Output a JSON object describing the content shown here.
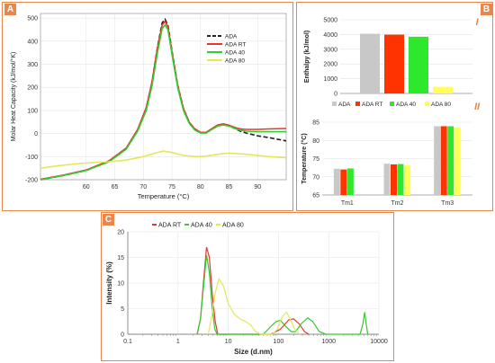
{
  "colors": {
    "frame": "#e9874a",
    "ADA": "#222222",
    "ADA RT": "#e8352d",
    "ADA 40": "#33cc33",
    "ADA 80": "#e6e65a",
    "bar_ADA": "#c8c8c8",
    "bar_RT": "#ff3300",
    "bar_40": "#2ee82e",
    "bar_80": "#ffff55"
  },
  "panels": {
    "A": "A",
    "B": "B",
    "C": "C",
    "roman_1": "I",
    "roman_2": "II"
  },
  "chart_data": [
    {
      "id": "A",
      "type": "line",
      "xlabel": "Temperature (°C)",
      "ylabel": "Molar Heat Capacity (kJ/mol/°K)",
      "xlim": [
        52,
        95
      ],
      "ylim": [
        -200,
        520
      ],
      "x_ticks": [
        60,
        65,
        70,
        75,
        80,
        85,
        90
      ],
      "y_ticks": [
        -200,
        -100,
        0,
        100,
        200,
        300,
        400,
        500
      ],
      "legend_position": "top-right",
      "series": [
        {
          "name": "ADA",
          "style": "dashed",
          "points": [
            [
              52,
              -200
            ],
            [
              56,
              -182
            ],
            [
              60,
              -160
            ],
            [
              64,
              -120
            ],
            [
              67,
              -65
            ],
            [
              69,
              15
            ],
            [
              70.5,
              110
            ],
            [
              71.5,
              220
            ],
            [
              72.5,
              380
            ],
            [
              73.3,
              480
            ],
            [
              73.8,
              495
            ],
            [
              74.3,
              470
            ],
            [
              75,
              360
            ],
            [
              76,
              210
            ],
            [
              77,
              110
            ],
            [
              78,
              50
            ],
            [
              79,
              20
            ],
            [
              80,
              5
            ],
            [
              81,
              5
            ],
            [
              82,
              20
            ],
            [
              83,
              35
            ],
            [
              84,
              40
            ],
            [
              85,
              35
            ],
            [
              86,
              22
            ],
            [
              87,
              10
            ],
            [
              88,
              2
            ],
            [
              90,
              -10
            ],
            [
              92,
              -18
            ],
            [
              95,
              -32
            ]
          ]
        },
        {
          "name": "ADA RT",
          "style": "solid",
          "points": [
            [
              52,
              -198
            ],
            [
              56,
              -180
            ],
            [
              60,
              -158
            ],
            [
              64,
              -118
            ],
            [
              67,
              -63
            ],
            [
              69,
              17
            ],
            [
              70.5,
              112
            ],
            [
              71.5,
              222
            ],
            [
              72.5,
              375
            ],
            [
              73.3,
              470
            ],
            [
              73.8,
              486
            ],
            [
              74.3,
              462
            ],
            [
              75,
              355
            ],
            [
              76,
              208
            ],
            [
              77,
              110
            ],
            [
              78,
              50
            ],
            [
              79,
              20
            ],
            [
              80,
              5
            ],
            [
              81,
              5
            ],
            [
              82,
              22
            ],
            [
              83,
              37
            ],
            [
              84,
              42
            ],
            [
              85,
              36
            ],
            [
              86,
              26
            ],
            [
              87,
              20
            ],
            [
              88,
              18
            ],
            [
              90,
              18
            ],
            [
              92,
              20
            ],
            [
              95,
              22
            ]
          ]
        },
        {
          "name": "ADA 40",
          "style": "solid",
          "points": [
            [
              52,
              -200
            ],
            [
              56,
              -182
            ],
            [
              60,
              -160
            ],
            [
              64,
              -122
            ],
            [
              67,
              -68
            ],
            [
              69,
              10
            ],
            [
              70.5,
              100
            ],
            [
              71.5,
              205
            ],
            [
              72.5,
              355
            ],
            [
              73.3,
              455
            ],
            [
              73.8,
              470
            ],
            [
              74.3,
              450
            ],
            [
              75,
              345
            ],
            [
              76,
              200
            ],
            [
              77,
              102
            ],
            [
              78,
              45
            ],
            [
              79,
              15
            ],
            [
              80,
              2
            ],
            [
              81,
              2
            ],
            [
              82,
              18
            ],
            [
              83,
              32
            ],
            [
              84,
              37
            ],
            [
              85,
              32
            ],
            [
              86,
              22
            ],
            [
              87,
              14
            ],
            [
              88,
              10
            ],
            [
              90,
              8
            ],
            [
              92,
              8
            ],
            [
              95,
              8
            ]
          ]
        },
        {
          "name": "ADA 80",
          "style": "solid",
          "points": [
            [
              52,
              -150
            ],
            [
              55,
              -140
            ],
            [
              58,
              -132
            ],
            [
              61,
              -126
            ],
            [
              64,
              -122
            ],
            [
              67,
              -115
            ],
            [
              70,
              -100
            ],
            [
              72,
              -85
            ],
            [
              73.5,
              -76
            ],
            [
              75,
              -82
            ],
            [
              77,
              -95
            ],
            [
              79,
              -100
            ],
            [
              81,
              -98
            ],
            [
              83,
              -90
            ],
            [
              85,
              -85
            ],
            [
              88,
              -90
            ],
            [
              92,
              -100
            ],
            [
              95,
              -105
            ]
          ]
        }
      ]
    },
    {
      "id": "B-I",
      "type": "bar",
      "ylabel": "Enthalpy (kJ/mol)",
      "ylim": [
        0,
        5000
      ],
      "y_ticks": [
        0,
        1000,
        2000,
        3000,
        4000,
        5000
      ],
      "categories": [
        "ADA",
        "ADA RT",
        "ADA 40",
        "ADA 80"
      ],
      "values": [
        4050,
        3990,
        3850,
        450
      ],
      "legend_position": "bottom"
    },
    {
      "id": "B-II",
      "type": "bar",
      "ylabel": "Temperature (°C)",
      "ylim": [
        65,
        85
      ],
      "y_ticks": [
        65,
        70,
        75,
        80,
        85
      ],
      "categories": [
        "Tm1",
        "Tm2",
        "Tm3"
      ],
      "series": [
        {
          "name": "ADA",
          "values": [
            72.2,
            73.6,
            83.9
          ]
        },
        {
          "name": "ADA RT",
          "values": [
            72.0,
            73.4,
            83.9
          ]
        },
        {
          "name": "ADA 40",
          "values": [
            72.3,
            73.5,
            83.9
          ]
        },
        {
          "name": "ADA 80",
          "values": [
            65.0,
            73.2,
            83.5
          ]
        }
      ]
    },
    {
      "id": "C",
      "type": "line",
      "xlabel": "Size (d.nm)",
      "ylabel": "Intensity (%)",
      "xscale": "log",
      "xlim": [
        0.1,
        10000
      ],
      "ylim": [
        0,
        20
      ],
      "x_ticks": [
        "0.1",
        "1",
        "10",
        "100",
        "1000",
        "10000"
      ],
      "y_ticks": [
        0,
        5,
        10,
        15,
        20
      ],
      "legend_position": "top",
      "series": [
        {
          "name": "ADA RT",
          "points": [
            [
              2.4,
              0
            ],
            [
              2.8,
              3
            ],
            [
              3.2,
              10
            ],
            [
              3.7,
              17
            ],
            [
              4.2,
              15
            ],
            [
              4.8,
              8
            ],
            [
              5.5,
              2.5
            ],
            [
              6.2,
              0
            ],
            [
              70,
              0
            ],
            [
              110,
              1
            ],
            [
              160,
              2.8
            ],
            [
              200,
              3
            ],
            [
              260,
              2
            ],
            [
              330,
              0.5
            ],
            [
              400,
              0
            ]
          ]
        },
        {
          "name": "ADA 40",
          "points": [
            [
              2.4,
              0
            ],
            [
              2.8,
              3
            ],
            [
              3.2,
              9
            ],
            [
              3.7,
              15.5
            ],
            [
              4.2,
              12
            ],
            [
              4.8,
              5
            ],
            [
              5.4,
              1
            ],
            [
              6,
              0
            ],
            [
              50,
              0
            ],
            [
              70,
              1.5
            ],
            [
              90,
              2.5
            ],
            [
              110,
              2.7
            ],
            [
              140,
              1.5
            ],
            [
              180,
              0.5
            ],
            [
              220,
              0.5
            ],
            [
              280,
              2
            ],
            [
              380,
              3.2
            ],
            [
              480,
              2.5
            ],
            [
              650,
              0.5
            ],
            [
              900,
              0
            ],
            [
              4200,
              0
            ],
            [
              4800,
              2
            ],
            [
              5200,
              4.3
            ],
            [
              5600,
              2
            ],
            [
              6000,
              0
            ]
          ]
        },
        {
          "name": "ADA 80",
          "points": [
            [
              4,
              0
            ],
            [
              4.8,
              4
            ],
            [
              5.5,
              8
            ],
            [
              6.5,
              10.8
            ],
            [
              8,
              9.5
            ],
            [
              10,
              6
            ],
            [
              13,
              4
            ],
            [
              17,
              3
            ],
            [
              22,
              2.5
            ],
            [
              28,
              1.8
            ],
            [
              35,
              0.5
            ],
            [
              45,
              0
            ],
            [
              75,
              0
            ],
            [
              95,
              1
            ],
            [
              120,
              3.5
            ],
            [
              145,
              4.3
            ],
            [
              170,
              3
            ],
            [
              210,
              1
            ],
            [
              260,
              0
            ]
          ]
        }
      ]
    }
  ]
}
